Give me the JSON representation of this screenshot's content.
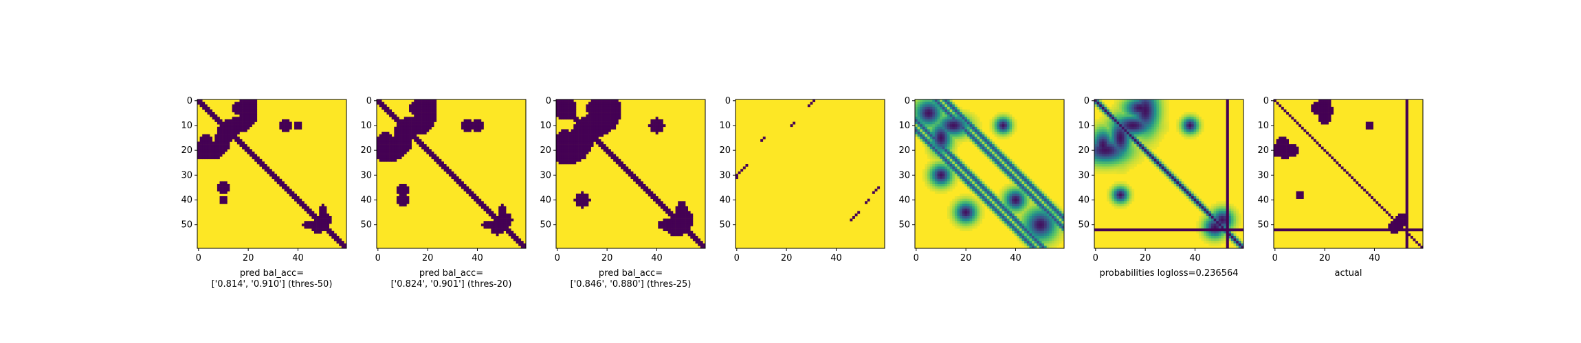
{
  "figure": {
    "background": "#ffffff",
    "colors": {
      "low": "#440154",
      "high": "#fde725",
      "mid1": "#21918c",
      "mid2": "#5ec962",
      "mid3": "#3b528b"
    }
  },
  "chart_data": [
    {
      "type": "heatmap",
      "panel": 1,
      "binary": true,
      "xlabel": "pred bal_acc=\n['0.814', '0.910'] (thres-50)",
      "x_ticks": [
        0,
        20,
        40
      ],
      "y_ticks": [
        0,
        10,
        20,
        30,
        40,
        50
      ],
      "xlim": [
        0,
        60
      ],
      "ylim": [
        60,
        0
      ],
      "cmap": "viridis",
      "diag_width": 1.6,
      "extra_bands": [],
      "horizontal_lines": [],
      "vertical_lines": [],
      "blobs": [
        [
          15,
          10,
          8,
          4
        ],
        [
          10,
          15,
          4,
          8
        ],
        [
          3,
          18,
          4,
          6
        ],
        [
          18,
          3,
          6,
          4
        ],
        [
          20,
          4,
          5,
          9
        ],
        [
          4,
          20,
          9,
          5
        ],
        [
          10,
          35,
          3,
          3
        ],
        [
          35,
          10,
          3,
          3
        ],
        [
          40,
          10,
          2,
          2
        ],
        [
          10,
          40,
          2,
          2
        ],
        [
          48,
          51,
          3,
          3
        ],
        [
          51,
          48,
          3,
          3
        ],
        [
          45,
          50,
          4,
          2
        ],
        [
          50,
          45,
          2,
          4
        ]
      ]
    },
    {
      "type": "heatmap",
      "panel": 2,
      "binary": true,
      "xlabel": "pred bal_acc=\n['0.824', '0.901'] (thres-20)",
      "x_ticks": [
        0,
        20,
        40
      ],
      "y_ticks": [
        0,
        10,
        20,
        30,
        40,
        50
      ],
      "xlim": [
        0,
        60
      ],
      "ylim": [
        60,
        0
      ],
      "cmap": "viridis",
      "diag_width": 2.0,
      "extra_bands": [],
      "horizontal_lines": [],
      "vertical_lines": [],
      "blobs": [
        [
          15,
          10,
          9,
          5
        ],
        [
          10,
          15,
          5,
          9
        ],
        [
          3,
          18,
          5,
          7
        ],
        [
          18,
          3,
          7,
          5
        ],
        [
          20,
          4,
          6,
          10
        ],
        [
          4,
          20,
          10,
          5
        ],
        [
          10,
          36,
          3,
          3
        ],
        [
          36,
          10,
          3,
          3
        ],
        [
          40,
          10,
          3,
          3
        ],
        [
          10,
          40,
          3,
          3
        ],
        [
          48,
          51,
          4,
          4
        ],
        [
          51,
          48,
          4,
          4
        ],
        [
          45,
          50,
          5,
          2
        ],
        [
          50,
          45,
          2,
          5
        ]
      ]
    },
    {
      "type": "heatmap",
      "panel": 3,
      "binary": true,
      "xlabel": "pred bal_acc=\n['0.846', '0.880'] (thres-25)",
      "x_ticks": [
        0,
        20,
        40
      ],
      "y_ticks": [
        0,
        10,
        20,
        30,
        40,
        50
      ],
      "xlim": [
        0,
        60
      ],
      "ylim": [
        60,
        0
      ],
      "cmap": "viridis",
      "diag_width": 2.2,
      "extra_bands": [],
      "horizontal_lines": [],
      "vertical_lines": [],
      "blobs": [
        [
          15,
          10,
          10,
          6
        ],
        [
          10,
          15,
          6,
          10
        ],
        [
          3,
          3,
          6,
          6
        ],
        [
          3,
          18,
          6,
          8
        ],
        [
          18,
          3,
          8,
          6
        ],
        [
          20,
          4,
          7,
          11
        ],
        [
          4,
          20,
          11,
          7
        ],
        [
          10,
          40,
          4,
          4
        ],
        [
          40,
          10,
          4,
          4
        ],
        [
          48,
          51,
          5,
          5
        ],
        [
          51,
          48,
          5,
          5
        ],
        [
          45,
          50,
          6,
          3
        ],
        [
          50,
          45,
          3,
          6
        ]
      ]
    },
    {
      "type": "heatmap",
      "panel": 4,
      "binary": true,
      "xlabel": "",
      "x_ticks": [
        0,
        20,
        40
      ],
      "y_ticks": [
        0,
        10,
        20,
        30,
        40,
        50
      ],
      "xlim": [
        0,
        60
      ],
      "ylim": [
        60,
        0
      ],
      "cmap": "viridis",
      "diag_width": 0,
      "extra_bands": [],
      "horizontal_lines": [],
      "vertical_lines": [],
      "blobs": [],
      "dots": [
        [
          0,
          31
        ],
        [
          1,
          30
        ],
        [
          2,
          29
        ],
        [
          9,
          23
        ],
        [
          10,
          22
        ],
        [
          15,
          11
        ],
        [
          16,
          10
        ],
        [
          26,
          4
        ],
        [
          27,
          3
        ],
        [
          28,
          2
        ],
        [
          29,
          1
        ],
        [
          30,
          0
        ],
        [
          31,
          0
        ],
        [
          35,
          57
        ],
        [
          36,
          56
        ],
        [
          37,
          55
        ],
        [
          40,
          53
        ],
        [
          41,
          52
        ],
        [
          45,
          49
        ],
        [
          46,
          48
        ],
        [
          47,
          47
        ],
        [
          48,
          46
        ]
      ]
    },
    {
      "type": "heatmap",
      "panel": 5,
      "binary": false,
      "xlabel": "",
      "x_ticks": [
        0,
        20,
        40
      ],
      "y_ticks": [
        0,
        10,
        20,
        30,
        40,
        50
      ],
      "xlim": [
        0,
        60
      ],
      "ylim": [
        60,
        0
      ],
      "cmap": "viridis",
      "diag_width": 0,
      "extra_bands": [
        [
          12,
          1.5
        ],
        [
          8,
          1.5
        ]
      ],
      "horizontal_lines": [],
      "vertical_lines": [],
      "blobs": [
        [
          15,
          10,
          6,
          4
        ],
        [
          10,
          15,
          4,
          6
        ],
        [
          5,
          5,
          5,
          5
        ],
        [
          30,
          10,
          4,
          4
        ],
        [
          40,
          40,
          4,
          4
        ],
        [
          10,
          35,
          3,
          3
        ],
        [
          50,
          50,
          6,
          6
        ],
        [
          45,
          20,
          4,
          4
        ]
      ]
    },
    {
      "type": "heatmap",
      "panel": 6,
      "binary": false,
      "xlabel": "probabilities logloss=0.236564",
      "x_ticks": [
        0,
        20,
        40
      ],
      "y_ticks": [
        0,
        10,
        20,
        30,
        40,
        50
      ],
      "xlim": [
        0,
        60
      ],
      "ylim": [
        60,
        0
      ],
      "cmap": "viridis",
      "diag_width": 1.4,
      "extra_bands": [],
      "horizontal_lines": [
        52
      ],
      "vertical_lines": [
        53
      ],
      "blobs": [
        [
          15,
          10,
          8,
          4
        ],
        [
          10,
          15,
          4,
          8
        ],
        [
          3,
          18,
          4,
          6
        ],
        [
          18,
          3,
          6,
          4
        ],
        [
          20,
          4,
          5,
          9
        ],
        [
          4,
          20,
          9,
          5
        ],
        [
          10,
          38,
          3,
          3
        ],
        [
          38,
          10,
          3,
          3
        ],
        [
          48,
          51,
          4,
          4
        ],
        [
          51,
          48,
          4,
          4
        ]
      ]
    },
    {
      "type": "heatmap",
      "panel": 7,
      "binary": true,
      "xlabel": "actual",
      "x_ticks": [
        0,
        20,
        40
      ],
      "y_ticks": [
        0,
        10,
        20,
        30,
        40,
        50
      ],
      "xlim": [
        0,
        60
      ],
      "ylim": [
        60,
        0
      ],
      "cmap": "viridis",
      "diag_width": 1.2,
      "extra_bands": [],
      "horizontal_lines": [
        52
      ],
      "vertical_lines": [
        53
      ],
      "blobs": [
        [
          3,
          18,
          4,
          5
        ],
        [
          18,
          3,
          5,
          4
        ],
        [
          20,
          4,
          4,
          7
        ],
        [
          4,
          20,
          7,
          4
        ],
        [
          10,
          38,
          2,
          2
        ],
        [
          38,
          10,
          2,
          2
        ],
        [
          48,
          51,
          3,
          3
        ],
        [
          51,
          48,
          3,
          3
        ]
      ]
    }
  ]
}
